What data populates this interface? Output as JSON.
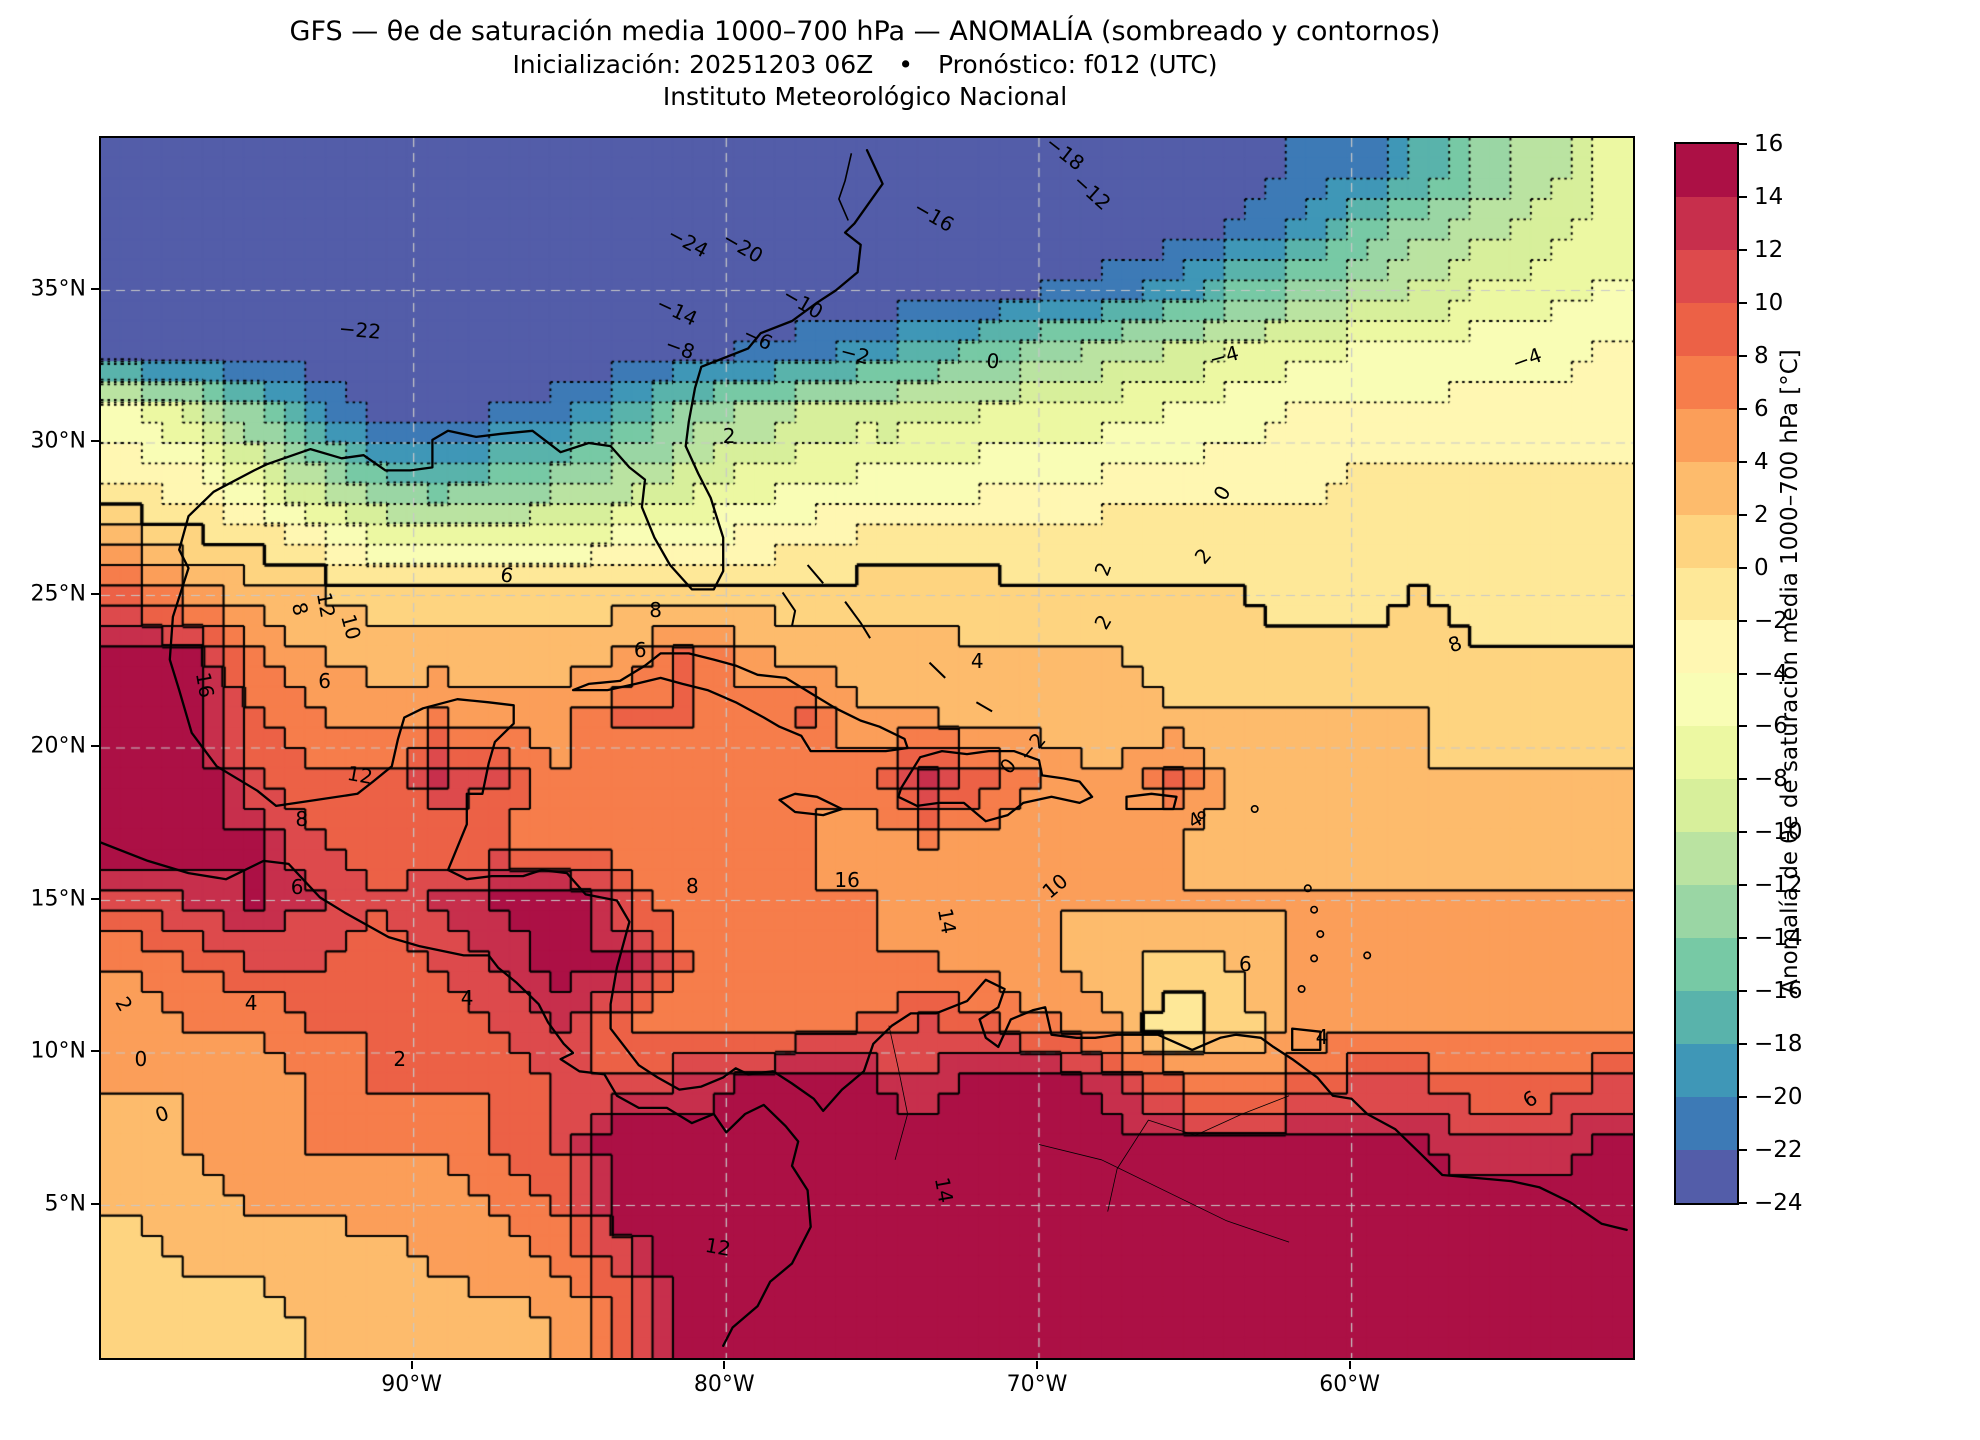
{
  "figure": {
    "title": "GFS — θe de saturación media 1000–700 hPa — ANOMALÍA (sombreado y contornos)",
    "subtitle": "Inicialización: 20251203 06Z • Pronóstico: f012 (UTC)",
    "institution": "Instituto Meteorológico Nacional"
  },
  "axes": {
    "lat_ticks": [
      {
        "deg": 35,
        "label": "35°N"
      },
      {
        "deg": 30,
        "label": "30°N"
      },
      {
        "deg": 25,
        "label": "25°N"
      },
      {
        "deg": 20,
        "label": "20°N"
      },
      {
        "deg": 15,
        "label": "15°N"
      },
      {
        "deg": 10,
        "label": "10°N"
      },
      {
        "deg": 5,
        "label": "5°N"
      }
    ],
    "lon_ticks": [
      {
        "deg": 90,
        "label": "90°W"
      },
      {
        "deg": 80,
        "label": "80°W"
      },
      {
        "deg": 70,
        "label": "70°W"
      },
      {
        "deg": 60,
        "label": "60°W"
      }
    ]
  },
  "colorbar": {
    "label": "Anomalía de θe de saturación media 1000–700 hPa [°C]",
    "tick_labels": [
      "16",
      "14",
      "12",
      "10",
      "8",
      "6",
      "4",
      "2",
      "0",
      "−2",
      "−4",
      "−6",
      "−8",
      "−10",
      "−12",
      "−14",
      "−16",
      "−18",
      "−20",
      "−22",
      "−24"
    ],
    "colors_low_to_high": [
      "#535DA9",
      "#3D7AB6",
      "#3F97B7",
      "#59B3AB",
      "#77C9A5",
      "#9AD6A4",
      "#BAE3A1",
      "#D7EF9B",
      "#ECF8A2",
      "#F9FDB5",
      "#FFF7B2",
      "#FEE898",
      "#FED480",
      "#FDBB6C",
      "#FB9E59",
      "#F67D4B",
      "#EC6146",
      "#DD4A4C",
      "#C72F4C",
      "#AC1045"
    ],
    "gridline_color": "#c8c8c8",
    "contour_color": "#000000"
  },
  "chart_data": {
    "type": "heatmap",
    "title": "GFS — θe de saturación media 1000–700 hPa — ANOMALÍA (sombreado y contornos)",
    "colormap": "Spectral_r (20 niveles discretos)",
    "units": "°C",
    "levels_c": {
      "min": -24,
      "max": 16,
      "step": 2
    },
    "contour_style": {
      "negative": "dotted",
      "zero": "solid-thick",
      "positive": "solid"
    },
    "extent": {
      "lon_west_deg": 100,
      "lon_east_deg": 51,
      "lat_south_deg": 0,
      "lat_north_deg": 40
    },
    "grid": {
      "ncols": 25,
      "nrows": 20,
      "order": "rows from 40°N (top) to 0°N (bottom); cols from 100°W (left) to 51°W (right); approximate cell-mean anomaly in °C",
      "values": [
        [
          -24,
          -24,
          -24,
          -24,
          -24,
          -24,
          -24,
          -24,
          -24,
          -24,
          -24,
          -24,
          -24,
          -24,
          -24,
          -24,
          -24,
          -24,
          -23,
          -22,
          -21,
          -18,
          -14,
          -11,
          -8
        ],
        [
          -24,
          -24,
          -24,
          -24,
          -24,
          -24,
          -24,
          -24,
          -24,
          -24,
          -24,
          -24,
          -24,
          -24,
          -24,
          -24,
          -24,
          -23,
          -22,
          -20,
          -16,
          -13,
          -11,
          -9,
          -7
        ],
        [
          -24,
          -24,
          -24,
          -24,
          -24,
          -24,
          -24,
          -24,
          -24,
          -24,
          -24,
          -24,
          -24,
          -24,
          -23,
          -22,
          -21,
          -19,
          -16,
          -14,
          -12,
          -10,
          -8,
          -7,
          -6
        ],
        [
          -24,
          -24,
          -24,
          -24,
          -24,
          -24,
          -24,
          -24,
          -24,
          -23,
          -22,
          -21,
          -19,
          -17,
          -15,
          -13,
          -11,
          -10,
          -8,
          -7,
          -6,
          -6,
          -5,
          -5,
          -4
        ],
        [
          -6,
          -9,
          -14,
          -20,
          -23,
          -23,
          -22,
          -21,
          -18,
          -14,
          -12,
          -10,
          -9,
          -9,
          -8,
          -8,
          -7,
          -6,
          -5,
          -4,
          -4,
          -4,
          -3,
          -3,
          -3
        ],
        [
          -3,
          -4,
          -8,
          -12,
          -16,
          -17,
          -16,
          -14,
          -12,
          -10,
          -8,
          -7,
          -6,
          -6,
          -5,
          -5,
          -4,
          -4,
          -3,
          -3,
          -2,
          -2,
          -2,
          -2,
          -2
        ],
        [
          2,
          0,
          -1,
          -4,
          -7,
          -8,
          -8,
          -7,
          -6,
          -5,
          -4,
          -3,
          -2,
          -2,
          -2,
          -2,
          -1,
          -1,
          -1,
          -1,
          -1,
          -1,
          -1,
          -1,
          -1
        ],
        [
          8,
          5,
          3,
          2,
          1,
          1,
          1,
          1,
          1,
          1,
          1,
          1,
          1,
          1,
          1,
          0,
          0,
          0,
          0,
          -1,
          -1,
          0,
          -1,
          -1,
          -1
        ],
        [
          16,
          14,
          6,
          4,
          3,
          3,
          3,
          3,
          4,
          8,
          5,
          3,
          3,
          3,
          2,
          2,
          2,
          1,
          1,
          1,
          1,
          1,
          0,
          0,
          0
        ],
        [
          16,
          16,
          8,
          6,
          5,
          6,
          5,
          5,
          8,
          8,
          7,
          8,
          4,
          4,
          3,
          3,
          3,
          2,
          2,
          2,
          2,
          2,
          1,
          1,
          1
        ],
        [
          16,
          16,
          10,
          8,
          8,
          12,
          10,
          6,
          6,
          6,
          6,
          6,
          7,
          12,
          8,
          5,
          4,
          8,
          3,
          3,
          2,
          2,
          2,
          2,
          2
        ],
        [
          16,
          16,
          14,
          10,
          8,
          8,
          8,
          6,
          6,
          6,
          6,
          6,
          5,
          6,
          5,
          4,
          4,
          4,
          3,
          3,
          3,
          3,
          3,
          3,
          3
        ],
        [
          10,
          12,
          14,
          12,
          10,
          12,
          14,
          16,
          10,
          6,
          6,
          6,
          6,
          5,
          5,
          4,
          4,
          4,
          4,
          4,
          4,
          4,
          4,
          4,
          4
        ],
        [
          6,
          8,
          10,
          10,
          8,
          10,
          12,
          16,
          14,
          8,
          6,
          6,
          6,
          6,
          5,
          4,
          3,
          1,
          2,
          4,
          4,
          4,
          4,
          4,
          4
        ],
        [
          5,
          6,
          6,
          8,
          8,
          8,
          10,
          12,
          8,
          6,
          6,
          7,
          8,
          10,
          8,
          6,
          4,
          -2,
          1,
          4,
          5,
          5,
          5,
          5,
          5
        ],
        [
          4,
          4,
          5,
          6,
          8,
          8,
          8,
          10,
          10,
          12,
          14,
          16,
          14,
          12,
          16,
          16,
          12,
          8,
          6,
          8,
          10,
          10,
          8,
          8,
          10
        ],
        [
          3,
          4,
          5,
          6,
          6,
          6,
          8,
          10,
          16,
          16,
          16,
          16,
          16,
          16,
          16,
          16,
          16,
          14,
          14,
          14,
          14,
          14,
          12,
          12,
          14
        ],
        [
          2,
          3,
          4,
          4,
          5,
          5,
          6,
          8,
          16,
          16,
          16,
          14,
          16,
          16,
          16,
          16,
          16,
          16,
          16,
          16,
          16,
          16,
          16,
          16,
          16
        ],
        [
          1,
          2,
          2,
          3,
          3,
          4,
          5,
          6,
          10,
          16,
          16,
          16,
          16,
          16,
          16,
          16,
          16,
          16,
          16,
          16,
          16,
          16,
          16,
          16,
          16
        ],
        [
          0,
          0,
          1,
          2,
          2,
          2,
          3,
          4,
          8,
          14,
          16,
          16,
          16,
          16,
          16,
          16,
          16,
          16,
          16,
          16,
          16,
          16,
          16,
          16,
          16
        ]
      ]
    },
    "contour_labels": [
      {
        "text": "−18",
        "x": 62.9,
        "y": 1.2,
        "rot": 38
      },
      {
        "text": "−12",
        "x": 64.7,
        "y": 4.4,
        "rot": 42
      },
      {
        "text": "−16",
        "x": 54.4,
        "y": 6.4,
        "rot": 30
      },
      {
        "text": "−24",
        "x": 38.3,
        "y": 8.5,
        "rot": 28
      },
      {
        "text": "−20",
        "x": 41.9,
        "y": 8.9,
        "rot": 30
      },
      {
        "text": "−22",
        "x": 16.9,
        "y": 15.7,
        "rot": 5
      },
      {
        "text": "−14",
        "x": 37.6,
        "y": 14.2,
        "rot": 25
      },
      {
        "text": "−10",
        "x": 45.8,
        "y": 13.5,
        "rot": 30
      },
      {
        "text": "−8",
        "x": 37.8,
        "y": 17.2,
        "rot": 20
      },
      {
        "text": "−6",
        "x": 42.9,
        "y": 16.4,
        "rot": 25
      },
      {
        "text": "−2",
        "x": 49.2,
        "y": 17.7,
        "rot": 15
      },
      {
        "text": "0",
        "x": 58.2,
        "y": 18.3,
        "rot": 5
      },
      {
        "text": "−4",
        "x": 73.3,
        "y": 17.9,
        "rot": -15
      },
      {
        "text": "−4",
        "x": 93.1,
        "y": 18.1,
        "rot": -20
      },
      {
        "text": "2",
        "x": 41.0,
        "y": 24.4,
        "rot": 0
      },
      {
        "text": "0",
        "x": 73.2,
        "y": 29.1,
        "rot": -60
      },
      {
        "text": "2",
        "x": 65.4,
        "y": 35.3,
        "rot": -70
      },
      {
        "text": "2",
        "x": 65.4,
        "y": 39.7,
        "rot": -60
      },
      {
        "text": "12",
        "x": 14.7,
        "y": 38.3,
        "rot": 80
      },
      {
        "text": "8",
        "x": 13.0,
        "y": 38.6,
        "rot": 75
      },
      {
        "text": "10",
        "x": 16.3,
        "y": 40.1,
        "rot": 75
      },
      {
        "text": "8",
        "x": 36.2,
        "y": 38.7,
        "rot": 0
      },
      {
        "text": "6",
        "x": 26.5,
        "y": 35.8,
        "rot": 10
      },
      {
        "text": "6",
        "x": 35.2,
        "y": 42.0,
        "rot": 0
      },
      {
        "text": "6",
        "x": 14.6,
        "y": 44.5,
        "rot": 0
      },
      {
        "text": "4",
        "x": 57.2,
        "y": 42.9,
        "rot": 0
      },
      {
        "text": "2",
        "x": 71.9,
        "y": 34.3,
        "rot": -50
      },
      {
        "text": "12",
        "x": 16.9,
        "y": 52.2,
        "rot": 10
      },
      {
        "text": "8",
        "x": 13.1,
        "y": 55.8,
        "rot": 0
      },
      {
        "text": "6",
        "x": 12.8,
        "y": 61.4,
        "rot": 0
      },
      {
        "text": "16",
        "x": 48.7,
        "y": 60.8,
        "rot": 0
      },
      {
        "text": "8",
        "x": 38.6,
        "y": 61.3,
        "rot": 0
      },
      {
        "text": "14",
        "x": 55.2,
        "y": 64.2,
        "rot": 80
      },
      {
        "text": "10",
        "x": 62.3,
        "y": 61.3,
        "rot": -40
      },
      {
        "text": "4",
        "x": 71.4,
        "y": 55.9,
        "rot": -30
      },
      {
        "text": "8",
        "x": 88.4,
        "y": 41.5,
        "rot": -20
      },
      {
        "text": "−2",
        "x": 60.8,
        "y": 49.9,
        "rot": -50
      },
      {
        "text": "0",
        "x": 59.2,
        "y": 51.5,
        "rot": -50
      },
      {
        "text": "0",
        "x": 2.6,
        "y": 75.5,
        "rot": 0
      },
      {
        "text": "2",
        "x": 19.5,
        "y": 75.5,
        "rot": 0
      },
      {
        "text": "4",
        "x": 23.9,
        "y": 70.5,
        "rot": 0
      },
      {
        "text": "4",
        "x": 9.8,
        "y": 70.9,
        "rot": 0
      },
      {
        "text": "6",
        "x": 74.7,
        "y": 67.7,
        "rot": 0
      },
      {
        "text": "6",
        "x": 93.3,
        "y": 78.8,
        "rot": -30
      },
      {
        "text": "4",
        "x": 79.7,
        "y": 73.7,
        "rot": 0
      },
      {
        "text": "12",
        "x": 40.3,
        "y": 90.9,
        "rot": 10
      },
      {
        "text": "14",
        "x": 55.0,
        "y": 86.2,
        "rot": 80
      },
      {
        "text": "16",
        "x": 6.8,
        "y": 44.8,
        "rot": 80
      },
      {
        "text": "0",
        "x": 4.0,
        "y": 80.0,
        "rot": -20
      },
      {
        "text": "2",
        "x": 1.5,
        "y": 71.0,
        "rot": 60
      }
    ]
  }
}
